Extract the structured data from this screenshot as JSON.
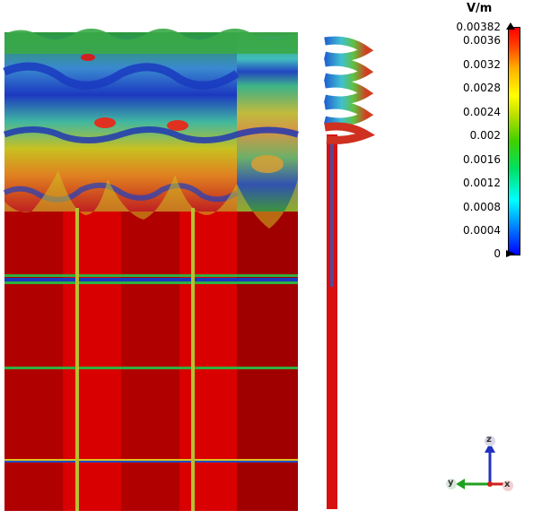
{
  "colorbar": {
    "unit": "V/m",
    "max_label": "0.00382",
    "ticks": [
      "0.0036",
      "0.0032",
      "0.0028",
      "0.0024",
      "0.002",
      "0.0016",
      "0.0012",
      "0.0008",
      "0.0004",
      "0"
    ],
    "colors": [
      "#0000ff",
      "#00ffff",
      "#00e060",
      "#ffff00",
      "#ff0000"
    ]
  },
  "triad": {
    "z": "z",
    "y": "y",
    "x": "x"
  },
  "field_colors": {
    "high": "#d80000",
    "dark_high": "#a00000",
    "mid": "#3cb43c",
    "low": "#1e46c8"
  }
}
